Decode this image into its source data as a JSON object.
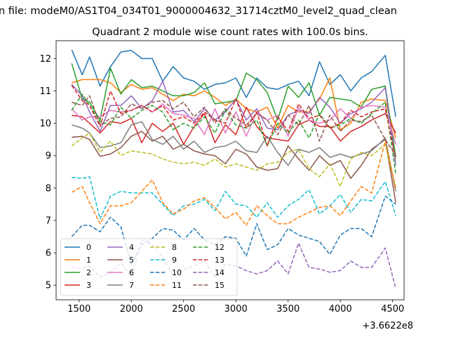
{
  "chart_data": {
    "type": "line",
    "suptitle": "n file: modeM0/AS1T04_034T01_9000004632_31714cztM0_level2_quad_clean",
    "title": "Quadrant 2 module wise count rates with 100.0s bins.",
    "xlabel": "",
    "ylabel": "",
    "x_offset_label": "+3.6622e8",
    "xlim": [
      1280,
      4610
    ],
    "ylim": [
      4.55,
      12.55
    ],
    "xticks": [
      1500,
      2000,
      2500,
      3000,
      3500,
      4000,
      4500
    ],
    "yticks": [
      5,
      6,
      7,
      8,
      9,
      10,
      11,
      12
    ],
    "grid": false,
    "legend_position": "lower-left",
    "x": [
      1430,
      1530,
      1600,
      1700,
      1800,
      1900,
      2000,
      2100,
      2200,
      2300,
      2400,
      2500,
      2600,
      2700,
      2800,
      2900,
      3000,
      3100,
      3200,
      3300,
      3400,
      3500,
      3600,
      3700,
      3800,
      3900,
      4000,
      4100,
      4200,
      4300,
      4430,
      4530
    ],
    "series": [
      {
        "name": "0",
        "color": "#1f77b4",
        "dash": "solid",
        "values": [
          12.27,
          11.5,
          12.05,
          11.15,
          11.75,
          12.2,
          12.25,
          12.0,
          12.0,
          11.3,
          11.75,
          11.4,
          11.3,
          11.05,
          11.2,
          11.25,
          11.4,
          10.8,
          11.4,
          11.1,
          11.05,
          11.2,
          11.3,
          10.85,
          11.9,
          11.2,
          11.5,
          11.0,
          11.4,
          11.6,
          12.1,
          10.2
        ]
      },
      {
        "name": "1",
        "color": "#ff7f0e",
        "dash": "solid",
        "values": [
          11.25,
          11.35,
          11.35,
          11.35,
          11.25,
          10.95,
          11.2,
          11.05,
          11.1,
          10.9,
          10.7,
          10.9,
          10.85,
          11.0,
          10.8,
          10.55,
          10.75,
          10.45,
          10.35,
          10.5,
          9.85,
          10.55,
          10.35,
          10.35,
          10.75,
          11.4,
          9.8,
          10.0,
          10.65,
          10.75,
          10.7,
          9.55
        ]
      },
      {
        "name": "2",
        "color": "#2ca02c",
        "dash": "solid",
        "values": [
          11.85,
          10.75,
          10.65,
          10.1,
          11.7,
          10.9,
          11.35,
          11.1,
          11.15,
          11.0,
          10.85,
          10.85,
          10.95,
          11.25,
          10.6,
          10.65,
          10.7,
          11.55,
          11.35,
          10.95,
          10.1,
          11.15,
          10.8,
          11.25,
          10.25,
          10.8,
          10.75,
          10.7,
          10.5,
          11.05,
          11.15,
          8.95
        ]
      },
      {
        "name": "3",
        "color": "#d62728",
        "dash": "solid",
        "values": [
          10.25,
          10.2,
          10.0,
          9.7,
          10.05,
          10.0,
          10.15,
          9.4,
          10.0,
          9.75,
          10.0,
          9.35,
          9.9,
          10.3,
          9.4,
          9.95,
          9.65,
          10.5,
          9.9,
          9.55,
          9.5,
          9.45,
          9.95,
          10.1,
          9.9,
          9.9,
          9.45,
          9.75,
          9.9,
          10.1,
          10.3,
          9.7
        ]
      },
      {
        "name": "4",
        "color": "#9467bd",
        "dash": "solid",
        "values": [
          11.2,
          10.85,
          10.35,
          9.75,
          10.55,
          10.55,
          10.85,
          10.45,
          10.7,
          11.3,
          10.35,
          10.4,
          10.05,
          10.45,
          10.1,
          10.35,
          10.75,
          10.1,
          10.45,
          9.85,
          9.8,
          10.25,
          10.4,
          10.3,
          10.8,
          10.5,
          10.0,
          10.3,
          10.45,
          10.65,
          11.1,
          8.7
        ]
      },
      {
        "name": "5",
        "color": "#8c564b",
        "dash": "solid",
        "values": [
          9.57,
          9.6,
          9.5,
          8.98,
          9.05,
          9.25,
          9.6,
          9.75,
          9.45,
          9.6,
          9.2,
          9.35,
          9.15,
          9.05,
          9.0,
          8.75,
          9.2,
          9.05,
          8.65,
          8.55,
          8.6,
          9.3,
          8.9,
          8.55,
          9.0,
          8.7,
          8.85,
          8.3,
          8.7,
          9.2,
          9.5,
          7.55
        ]
      },
      {
        "name": "6",
        "color": "#e377c2",
        "dash": "solid",
        "values": [
          10.45,
          10.1,
          10.2,
          10.2,
          10.4,
          10.35,
          10.4,
          10.55,
          10.35,
          10.6,
          10.3,
          10.25,
          10.15,
          9.65,
          10.45,
          9.7,
          10.35,
          9.6,
          10.35,
          10.1,
          10.25,
          9.6,
          10.5,
          10.1,
          10.0,
          10.1,
          10.45,
          10.15,
          10.5,
          10.55,
          10.5,
          9.35
        ]
      },
      {
        "name": "7",
        "color": "#7f7f7f",
        "dash": "solid",
        "values": [
          9.95,
          9.85,
          9.7,
          9.25,
          9.3,
          9.4,
          9.95,
          10.05,
          9.5,
          9.35,
          9.6,
          9.2,
          9.45,
          9.1,
          9.25,
          9.3,
          9.45,
          9.15,
          9.1,
          9.6,
          9.1,
          8.7,
          9.2,
          9.1,
          9.25,
          8.95,
          9.05,
          8.95,
          9.05,
          9.15,
          9.55,
          7.9
        ]
      },
      {
        "name": "8",
        "color": "#bcbd22",
        "dash": "dashed",
        "values": [
          9.3,
          9.55,
          9.7,
          9.1,
          9.45,
          9.0,
          9.15,
          9.1,
          9.05,
          8.9,
          8.8,
          8.75,
          8.8,
          8.7,
          8.9,
          8.65,
          8.75,
          8.65,
          8.55,
          8.75,
          8.8,
          9.1,
          9.2,
          8.6,
          8.35,
          8.75,
          8.05,
          8.9,
          9.1,
          9.0,
          9.35,
          8.0
        ]
      },
      {
        "name": "9",
        "color": "#17becf",
        "dash": "dashed",
        "values": [
          8.33,
          8.3,
          8.35,
          7.05,
          7.75,
          7.9,
          7.85,
          7.85,
          7.85,
          7.5,
          7.15,
          7.45,
          7.5,
          7.65,
          7.3,
          7.9,
          7.5,
          7.45,
          7.1,
          7.55,
          7.1,
          7.45,
          7.65,
          7.95,
          7.2,
          7.45,
          7.8,
          7.25,
          7.65,
          7.6,
          8.2,
          7.15
        ]
      },
      {
        "name": "10",
        "color": "#1f77b4",
        "dash": "dashed",
        "values": [
          6.5,
          6.85,
          6.85,
          6.65,
          7.1,
          6.8,
          5.65,
          6.25,
          6.45,
          6.75,
          6.7,
          6.4,
          6.75,
          6.4,
          6.25,
          6.5,
          6.45,
          5.9,
          6.9,
          6.1,
          6.25,
          6.75,
          6.55,
          6.45,
          6.35,
          5.95,
          6.55,
          6.75,
          6.75,
          6.5,
          7.75,
          7.5
        ]
      },
      {
        "name": "11",
        "color": "#ff7f0e",
        "dash": "dashed",
        "values": [
          7.87,
          8.05,
          7.55,
          6.9,
          7.45,
          7.45,
          7.55,
          7.9,
          8.25,
          7.55,
          7.2,
          7.35,
          7.6,
          7.7,
          7.4,
          7.05,
          7.25,
          6.85,
          7.45,
          7.15,
          6.9,
          6.9,
          7.1,
          7.25,
          7.4,
          7.45,
          7.15,
          7.6,
          8.05,
          7.85,
          9.45,
          8.0
        ]
      },
      {
        "name": "12",
        "color": "#2ca02c",
        "dash": "dashed",
        "values": [
          10.4,
          10.9,
          10.55,
          10.05,
          9.95,
          10.5,
          10.15,
          10.4,
          10.55,
          10.35,
          9.8,
          10.0,
          9.85,
          10.2,
          9.7,
          10.4,
          9.95,
          9.85,
          10.1,
          9.3,
          10.0,
          9.7,
          10.1,
          9.55,
          10.3,
          9.85,
          9.95,
          10.15,
          10.0,
          10.3,
          10.65,
          8.45
        ]
      },
      {
        "name": "13",
        "color": "#d62728",
        "dash": "dashed",
        "values": [
          11.17,
          10.7,
          10.55,
          9.9,
          11.0,
          10.3,
          10.4,
          10.55,
          10.35,
          10.55,
          10.1,
          10.2,
          10.0,
          10.35,
          10.1,
          10.0,
          10.75,
          9.85,
          10.35,
          9.3,
          10.2,
          9.75,
          10.6,
          10.15,
          10.25,
          9.85,
          10.0,
          10.4,
          10.2,
          10.35,
          10.45,
          8.9
        ]
      },
      {
        "name": "14",
        "color": "#9467bd",
        "dash": "dashed",
        "values": [
          5.57,
          5.5,
          5.6,
          5.25,
          5.4,
          5.7,
          5.25,
          6.4,
          6.25,
          5.85,
          5.3,
          5.5,
          5.6,
          5.75,
          5.25,
          5.65,
          5.6,
          5.45,
          5.35,
          5.45,
          5.75,
          5.35,
          6.3,
          5.55,
          5.5,
          5.4,
          5.45,
          5.75,
          5.55,
          5.55,
          6.15,
          4.9
        ]
      },
      {
        "name": "15",
        "color": "#8c564b",
        "dash": "dashed",
        "values": [
          10.65,
          10.55,
          10.85,
          9.95,
          10.15,
          10.2,
          10.6,
          10.45,
          10.65,
          10.7,
          10.45,
          10.65,
          10.2,
          10.5,
          10.0,
          10.45,
          10.15,
          9.95,
          10.3,
          10.1,
          9.65,
          10.25,
          9.95,
          10.55,
          9.45,
          10.25,
          9.75,
          10.1,
          10.05,
          10.25,
          9.5,
          9.0
        ]
      }
    ]
  }
}
